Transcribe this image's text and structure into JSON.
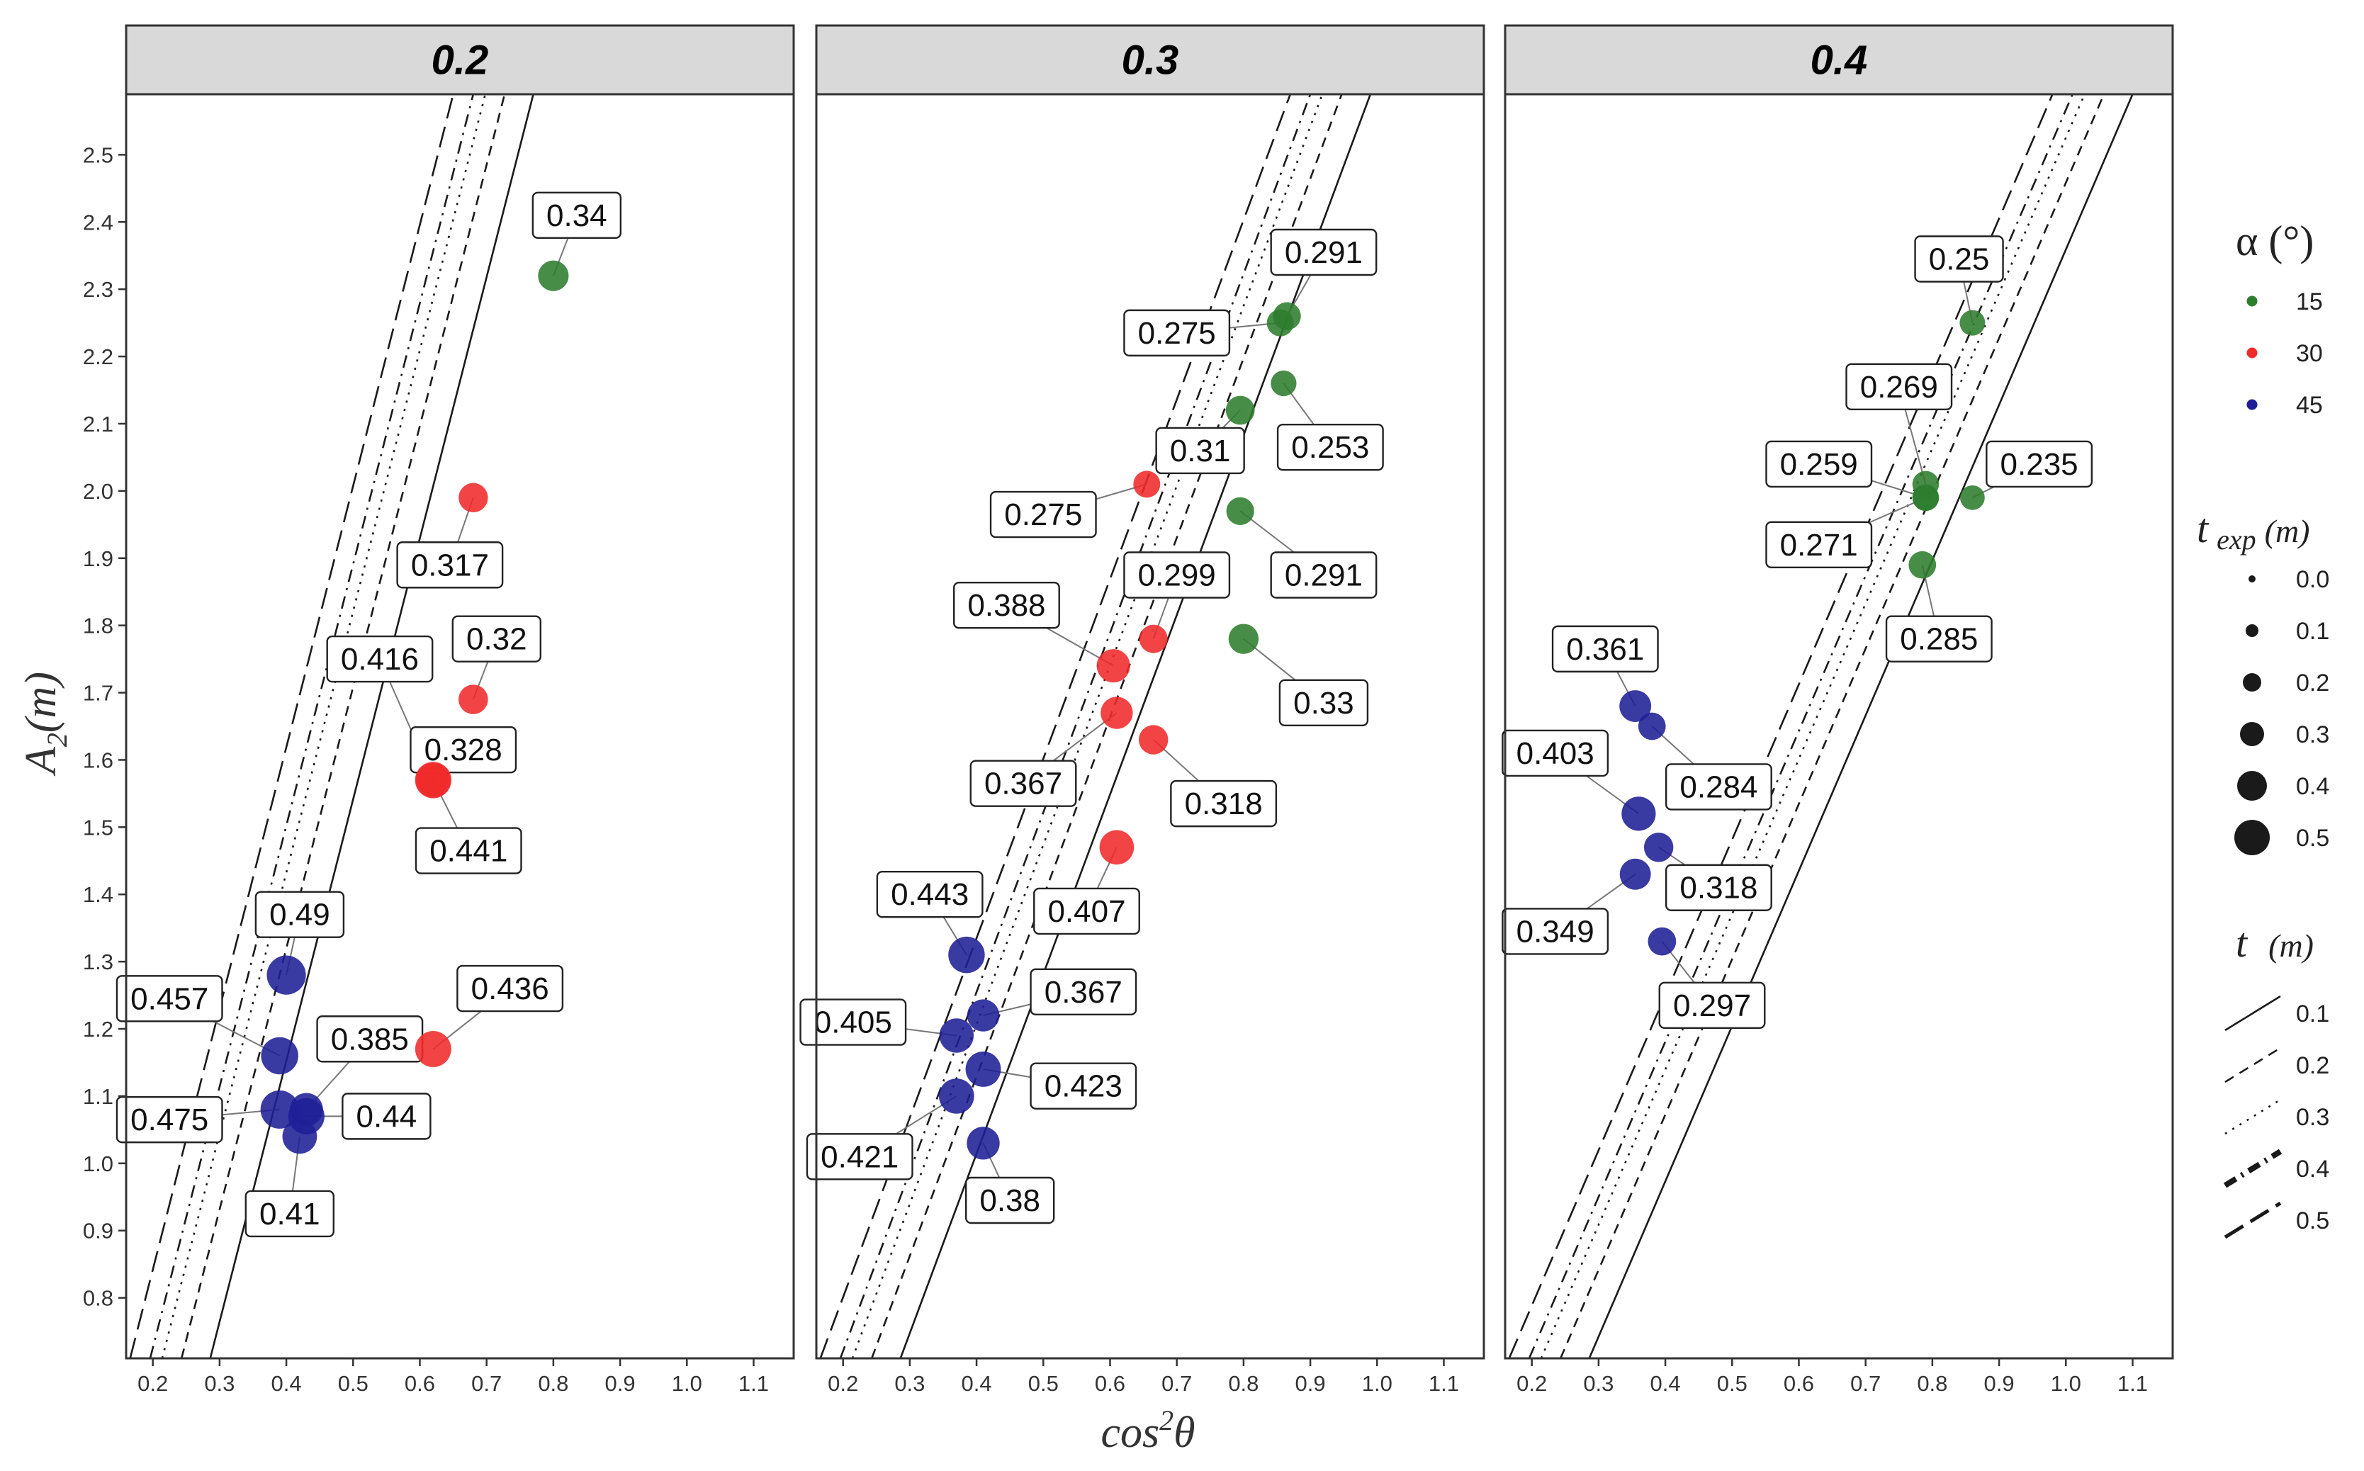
{
  "chart_data": {
    "type": "scatter",
    "xlabel_base": "cos",
    "xlabel_exp": "2",
    "xlabel_var": "θ",
    "ylabel_base": "A",
    "ylabel_sub": "2",
    "ylabel_unit": "(m)",
    "xlim": [
      0.16,
      1.16
    ],
    "ylim": [
      0.71,
      2.59
    ],
    "x_ticks": [
      0.2,
      0.3,
      0.4,
      0.5,
      0.6,
      0.7,
      0.8,
      0.9,
      1.0,
      1.1
    ],
    "x_tick_labels": [
      "0.2",
      "0.3",
      "0.4",
      "0.5",
      "0.6",
      "0.7",
      "0.8",
      "0.9",
      "1.0",
      "1.1"
    ],
    "y_ticks": [
      0.8,
      0.9,
      1.0,
      1.1,
      1.2,
      1.3,
      1.4,
      1.5,
      1.6,
      1.7,
      1.8,
      1.9,
      2.0,
      2.1,
      2.2,
      2.3,
      2.4,
      2.5
    ],
    "y_tick_labels": [
      "0.8",
      "0.9",
      "1.0",
      "1.1",
      "1.2",
      "1.3",
      "1.4",
      "1.5",
      "1.6",
      "1.7",
      "1.8",
      "1.9",
      "2.0",
      "2.1",
      "2.2",
      "2.3",
      "2.4",
      "2.5"
    ],
    "grid": false,
    "alpha_colors": {
      "15": "#2e7d2e",
      "30": "#f02a2a",
      "45": "#1f1f96"
    },
    "line_types": [
      {
        "t": 0.1,
        "dash": "solid"
      },
      {
        "t": 0.2,
        "dash": "short-dash"
      },
      {
        "t": 0.3,
        "dash": "dotted"
      },
      {
        "t": 0.4,
        "dash": "dot-dash"
      },
      {
        "t": 0.5,
        "dash": "long-dash"
      }
    ],
    "panels": [
      {
        "title": "0.2",
        "lines": [
          {
            "t": 0.1,
            "x_bottom": 0.286,
            "x_top": 0.77
          },
          {
            "t": 0.2,
            "x_bottom": 0.243,
            "x_top": 0.727
          },
          {
            "t": 0.3,
            "x_bottom": 0.214,
            "x_top": 0.698
          },
          {
            "t": 0.4,
            "x_bottom": 0.196,
            "x_top": 0.68
          },
          {
            "t": 0.5,
            "x_bottom": 0.166,
            "x_top": 0.65
          }
        ],
        "points": [
          {
            "x": 0.8,
            "y": 2.32,
            "alpha": 15,
            "t_exp": 0.34,
            "label": "0.34",
            "lx": 0.835,
            "ly": 2.41
          },
          {
            "x": 0.68,
            "y": 1.99,
            "alpha": 30,
            "t_exp": 0.317,
            "label": "0.317",
            "lx": 0.645,
            "ly": 1.89
          },
          {
            "x": 0.68,
            "y": 1.69,
            "alpha": 30,
            "t_exp": 0.32,
            "label": "0.32",
            "lx": 0.715,
            "ly": 1.78
          },
          {
            "x": 0.62,
            "y": 1.57,
            "alpha": 30,
            "t_exp": 0.416,
            "label": "0.416",
            "lx": 0.54,
            "ly": 1.75
          },
          {
            "x": 0.62,
            "y": 1.57,
            "alpha": 30,
            "t_exp": 0.328,
            "label": "0.328",
            "lx": 0.665,
            "ly": 1.615
          },
          {
            "x": 0.62,
            "y": 1.57,
            "alpha": 30,
            "t_exp": 0.441,
            "label": "0.441",
            "lx": 0.673,
            "ly": 1.465
          },
          {
            "x": 0.62,
            "y": 1.17,
            "alpha": 30,
            "t_exp": 0.436,
            "label": "0.436",
            "lx": 0.735,
            "ly": 1.26
          },
          {
            "x": 0.4,
            "y": 1.28,
            "alpha": 45,
            "t_exp": 0.49,
            "label": "0.49",
            "lx": 0.42,
            "ly": 1.37
          },
          {
            "x": 0.39,
            "y": 1.16,
            "alpha": 45,
            "t_exp": 0.457,
            "label": "0.457",
            "lx": 0.225,
            "ly": 1.245
          },
          {
            "x": 0.43,
            "y": 1.08,
            "alpha": 45,
            "t_exp": 0.385,
            "label": "0.385",
            "lx": 0.525,
            "ly": 1.185
          },
          {
            "x": 0.39,
            "y": 1.08,
            "alpha": 45,
            "t_exp": 0.475,
            "label": "0.475",
            "lx": 0.225,
            "ly": 1.065
          },
          {
            "x": 0.43,
            "y": 1.07,
            "alpha": 45,
            "t_exp": 0.44,
            "label": "0.44",
            "lx": 0.55,
            "ly": 1.07
          },
          {
            "x": 0.42,
            "y": 1.04,
            "alpha": 45,
            "t_exp": 0.41,
            "label": "0.41",
            "lx": 0.405,
            "ly": 0.925
          }
        ]
      },
      {
        "title": "0.3",
        "lines": [
          {
            "t": 0.1,
            "x_bottom": 0.286,
            "x_top": 0.99
          },
          {
            "t": 0.2,
            "x_bottom": 0.243,
            "x_top": 0.947
          },
          {
            "t": 0.3,
            "x_bottom": 0.214,
            "x_top": 0.918
          },
          {
            "t": 0.4,
            "x_bottom": 0.196,
            "x_top": 0.9
          },
          {
            "t": 0.5,
            "x_bottom": 0.166,
            "x_top": 0.87
          }
        ],
        "points": [
          {
            "x": 0.865,
            "y": 2.26,
            "alpha": 15,
            "t_exp": 0.291,
            "label": "0.291",
            "lx": 0.92,
            "ly": 2.355
          },
          {
            "x": 0.855,
            "y": 2.25,
            "alpha": 15,
            "t_exp": 0.275,
            "label": "0.275",
            "lx": 0.7,
            "ly": 2.235
          },
          {
            "x": 0.86,
            "y": 2.16,
            "alpha": 15,
            "t_exp": 0.253,
            "label": "0.253",
            "lx": 0.93,
            "ly": 2.065
          },
          {
            "x": 0.795,
            "y": 2.12,
            "alpha": 15,
            "t_exp": 0.31,
            "label": "0.31",
            "lx": 0.735,
            "ly": 2.06
          },
          {
            "x": 0.655,
            "y": 2.01,
            "alpha": 30,
            "t_exp": 0.275,
            "label": "0.275",
            "lx": 0.5,
            "ly": 1.965
          },
          {
            "x": 0.795,
            "y": 1.97,
            "alpha": 15,
            "t_exp": 0.291,
            "label": "0.291",
            "lx": 0.92,
            "ly": 1.875
          },
          {
            "x": 0.8,
            "y": 1.78,
            "alpha": 15,
            "t_exp": 0.33,
            "label": "0.33",
            "lx": 0.92,
            "ly": 1.685
          },
          {
            "x": 0.665,
            "y": 1.78,
            "alpha": 30,
            "t_exp": 0.299,
            "label": "0.299",
            "lx": 0.7,
            "ly": 1.875
          },
          {
            "x": 0.605,
            "y": 1.74,
            "alpha": 30,
            "t_exp": 0.388,
            "label": "0.388",
            "lx": 0.445,
            "ly": 1.83
          },
          {
            "x": 0.61,
            "y": 1.67,
            "alpha": 30,
            "t_exp": 0.367,
            "label": "0.367",
            "lx": 0.47,
            "ly": 1.565
          },
          {
            "x": 0.665,
            "y": 1.63,
            "alpha": 30,
            "t_exp": 0.318,
            "label": "0.318",
            "lx": 0.77,
            "ly": 1.535
          },
          {
            "x": 0.61,
            "y": 1.47,
            "alpha": 30,
            "t_exp": 0.407,
            "label": "0.407",
            "lx": 0.565,
            "ly": 1.375
          },
          {
            "x": 0.385,
            "y": 1.31,
            "alpha": 45,
            "t_exp": 0.443,
            "label": "0.443",
            "lx": 0.33,
            "ly": 1.4
          },
          {
            "x": 0.41,
            "y": 1.22,
            "alpha": 45,
            "t_exp": 0.367,
            "label": "0.367",
            "lx": 0.56,
            "ly": 1.255
          },
          {
            "x": 0.37,
            "y": 1.19,
            "alpha": 45,
            "t_exp": 0.405,
            "label": "0.405",
            "lx": 0.215,
            "ly": 1.21
          },
          {
            "x": 0.41,
            "y": 1.14,
            "alpha": 45,
            "t_exp": 0.423,
            "label": "0.423",
            "lx": 0.56,
            "ly": 1.115
          },
          {
            "x": 0.37,
            "y": 1.1,
            "alpha": 45,
            "t_exp": 0.421,
            "label": "0.421",
            "lx": 0.225,
            "ly": 1.01
          },
          {
            "x": 0.41,
            "y": 1.03,
            "alpha": 45,
            "t_exp": 0.38,
            "label": "0.38",
            "lx": 0.45,
            "ly": 0.945
          }
        ]
      },
      {
        "title": "0.4",
        "lines": [
          {
            "t": 0.1,
            "x_bottom": 0.286,
            "x_top": 1.1
          },
          {
            "t": 0.2,
            "x_bottom": 0.243,
            "x_top": 1.057
          },
          {
            "t": 0.3,
            "x_bottom": 0.214,
            "x_top": 1.028
          },
          {
            "t": 0.4,
            "x_bottom": 0.196,
            "x_top": 1.01
          },
          {
            "t": 0.5,
            "x_bottom": 0.166,
            "x_top": 0.98
          }
        ],
        "points": [
          {
            "x": 0.86,
            "y": 2.25,
            "alpha": 15,
            "t_exp": 0.25,
            "label": "0.25",
            "lx": 0.84,
            "ly": 2.345
          },
          {
            "x": 0.79,
            "y": 2.01,
            "alpha": 15,
            "t_exp": 0.269,
            "label": "0.269",
            "lx": 0.75,
            "ly": 2.155
          },
          {
            "x": 0.79,
            "y": 1.99,
            "alpha": 15,
            "t_exp": 0.259,
            "label": "0.259",
            "lx": 0.63,
            "ly": 2.04
          },
          {
            "x": 0.86,
            "y": 1.99,
            "alpha": 15,
            "t_exp": 0.235,
            "label": "0.235",
            "lx": 0.96,
            "ly": 2.04
          },
          {
            "x": 0.79,
            "y": 1.99,
            "alpha": 15,
            "t_exp": 0.271,
            "label": "0.271",
            "lx": 0.63,
            "ly": 1.92
          },
          {
            "x": 0.785,
            "y": 1.89,
            "alpha": 15,
            "t_exp": 0.285,
            "label": "0.285",
            "lx": 0.81,
            "ly": 1.78
          },
          {
            "x": 0.355,
            "y": 1.68,
            "alpha": 45,
            "t_exp": 0.361,
            "label": "0.361",
            "lx": 0.31,
            "ly": 1.765
          },
          {
            "x": 0.38,
            "y": 1.65,
            "alpha": 45,
            "t_exp": 0.284,
            "label": "0.284",
            "lx": 0.48,
            "ly": 1.56
          },
          {
            "x": 0.36,
            "y": 1.52,
            "alpha": 45,
            "t_exp": 0.403,
            "label": "0.403",
            "lx": 0.235,
            "ly": 1.61
          },
          {
            "x": 0.39,
            "y": 1.47,
            "alpha": 45,
            "t_exp": 0.318,
            "label": "0.318",
            "lx": 0.48,
            "ly": 1.41
          },
          {
            "x": 0.355,
            "y": 1.43,
            "alpha": 45,
            "t_exp": 0.349,
            "label": "0.349",
            "lx": 0.235,
            "ly": 1.345
          },
          {
            "x": 0.395,
            "y": 1.33,
            "alpha": 45,
            "t_exp": 0.297,
            "label": "0.297",
            "lx": 0.47,
            "ly": 1.235
          }
        ]
      }
    ],
    "legend_alpha": {
      "title": "α (°)",
      "entries": [
        {
          "value": "15",
          "label": "15"
        },
        {
          "value": "30",
          "label": "30"
        },
        {
          "value": "45",
          "label": "45"
        }
      ]
    },
    "legend_texp": {
      "title_main": "t",
      "title_sub": "exp",
      "title_unit": "(m)",
      "entries": [
        {
          "value": 0.0,
          "label": "0.0"
        },
        {
          "value": 0.1,
          "label": "0.1"
        },
        {
          "value": 0.2,
          "label": "0.2"
        },
        {
          "value": 0.3,
          "label": "0.3"
        },
        {
          "value": 0.4,
          "label": "0.4"
        },
        {
          "value": 0.5,
          "label": "0.5"
        }
      ]
    },
    "legend_t": {
      "title_main": "t",
      "title_unit": "(m)",
      "entries": [
        {
          "value": 0.1,
          "label": "0.1"
        },
        {
          "value": 0.2,
          "label": "0.2"
        },
        {
          "value": 0.3,
          "label": "0.3"
        },
        {
          "value": 0.4,
          "label": "0.4"
        },
        {
          "value": 0.5,
          "label": "0.5"
        }
      ]
    }
  }
}
